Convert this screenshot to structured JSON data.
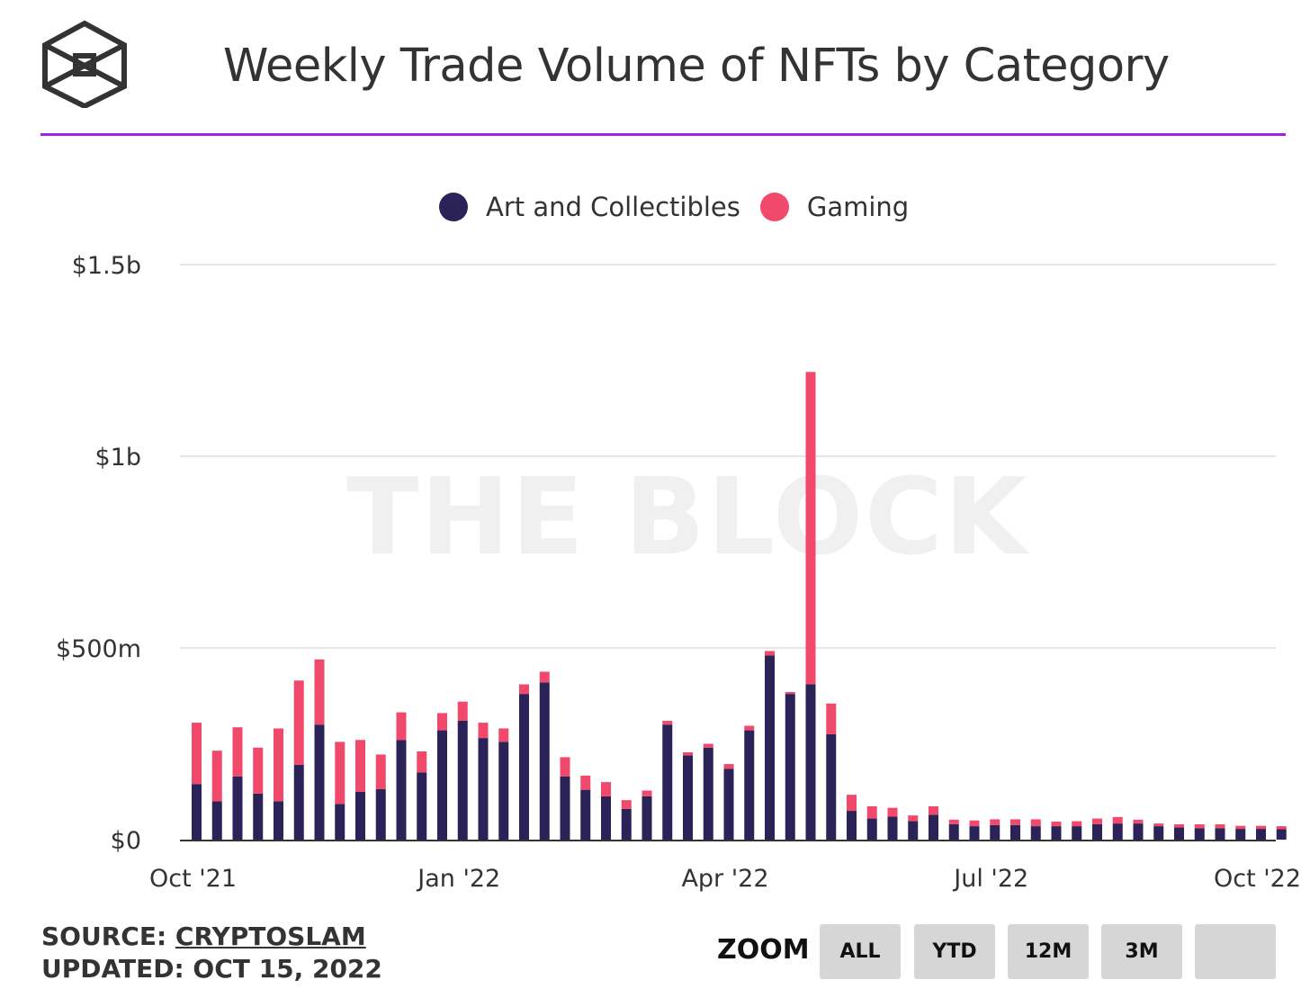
{
  "header": {
    "title": "Weekly Trade Volume of NFTs by Category",
    "logo_icon": "the-block-cube-logo-icon"
  },
  "legend": [
    {
      "label": "Art and Collectibles",
      "color": "#2b2358"
    },
    {
      "label": "Gaming",
      "color": "#f0496b"
    }
  ],
  "watermark": "THE BLOCK",
  "footer": {
    "source_label": "SOURCE:",
    "source_link": "CRYPTOSLAM",
    "updated": "UPDATED: OCT 15, 2022"
  },
  "zoom": {
    "label": "ZOOM",
    "buttons": [
      "ALL",
      "YTD",
      "12M",
      "3M",
      ""
    ]
  },
  "chart_data": {
    "type": "bar",
    "stacked": true,
    "title": "Weekly Trade Volume of NFTs by Category",
    "xlabel": "",
    "ylabel": "",
    "ylim": [
      0,
      1500000000
    ],
    "y_ticks": [
      {
        "value": 0,
        "label": "$0"
      },
      {
        "value": 500000000,
        "label": "$500m"
      },
      {
        "value": 1000000000,
        "label": "$1b"
      },
      {
        "value": 1500000000,
        "label": "$1.5b"
      }
    ],
    "x_ticks": [
      {
        "index": 0,
        "label": "Oct '21"
      },
      {
        "index": 13,
        "label": "Jan '22"
      },
      {
        "index": 26,
        "label": "Apr '22"
      },
      {
        "index": 39,
        "label": "Jul '22"
      },
      {
        "index": 52,
        "label": "Oct '22"
      }
    ],
    "grid": true,
    "legend_position": "top-center",
    "series": [
      {
        "name": "Art and Collectibles",
        "color": "#2b2358",
        "values": [
          145,
          100,
          165,
          120,
          100,
          195,
          300,
          93,
          125,
          132,
          260,
          175,
          285,
          310,
          265,
          255,
          380,
          410,
          165,
          130,
          113,
          80,
          113,
          300,
          220,
          240,
          185,
          285,
          480,
          380,
          405,
          275,
          75,
          55,
          60,
          48,
          65,
          40,
          35,
          38,
          38,
          35,
          35,
          35,
          40,
          42,
          42,
          35,
          32,
          30,
          30,
          28,
          28,
          27
        ]
      },
      {
        "name": "Gaming",
        "color": "#f0496b",
        "values": [
          160,
          132,
          128,
          120,
          190,
          220,
          170,
          162,
          135,
          90,
          72,
          55,
          45,
          50,
          40,
          35,
          25,
          28,
          50,
          37,
          37,
          23,
          15,
          10,
          8,
          10,
          12,
          12,
          12,
          5,
          815,
          80,
          42,
          32,
          23,
          15,
          22,
          12,
          15,
          15,
          15,
          18,
          12,
          13,
          15,
          17,
          10,
          7,
          8,
          10,
          10,
          8,
          8,
          8
        ]
      }
    ]
  }
}
